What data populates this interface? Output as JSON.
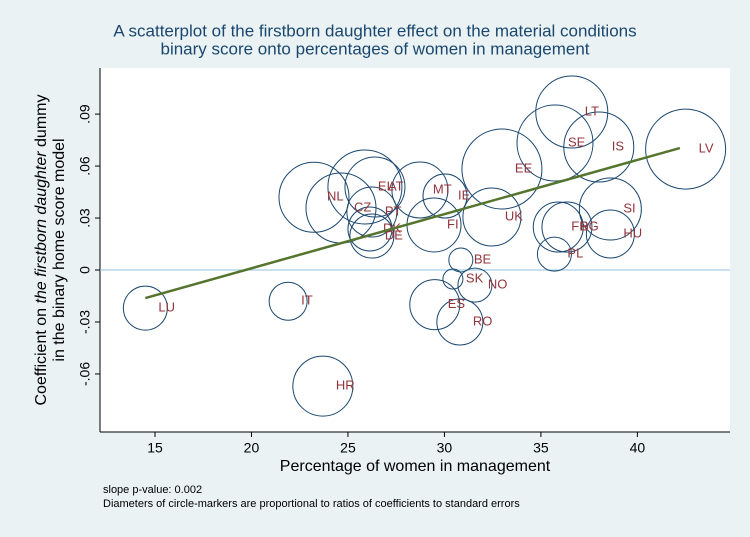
{
  "chart_data": {
    "type": "scatter",
    "title": [
      "A scatterplot of the firstborn daughter effect on the material conditions",
      "binary score onto percentages of women in management"
    ],
    "x_label": "Percentage of women in management",
    "y_label": {
      "line1": [
        "Coefficient on ",
        "the firstborn daughter",
        " dummy"
      ],
      "line2": "in the binary home score model"
    },
    "notes": [
      "slope p-value: 0.002",
      "Diameters of circle-markers are proportional to ratios of coefficients to standard errors"
    ],
    "labels": [
      "LU",
      "IT",
      "HR",
      "NL",
      "CZ",
      "EL",
      "AT",
      "PT",
      "DK",
      "DE",
      "MT",
      "IE",
      "FI",
      "UK",
      "EE",
      "SE",
      "LT",
      "IS",
      "LV",
      "SI",
      "FR",
      "BG",
      "HU",
      "PL",
      "BE",
      "SK",
      "NO",
      "ES",
      "RO"
    ],
    "x": [
      14.5,
      21.9,
      23.7,
      23.24,
      24.64,
      25.88,
      26.4,
      26.24,
      26.14,
      26.24,
      28.73,
      30.03,
      29.46,
      32.46,
      32.98,
      35.73,
      36.6,
      38.0,
      42.5,
      38.6,
      35.9,
      36.35,
      38.6,
      35.7,
      30.85,
      30.44,
      31.58,
      29.5,
      30.8
    ],
    "y": [
      -0.022,
      -0.018,
      -0.067,
      0.042,
      0.0358,
      0.0479,
      0.0479,
      0.0335,
      0.0237,
      0.0196,
      0.0462,
      0.0427,
      0.026,
      0.0306,
      0.0583,
      0.0733,
      0.0912,
      0.071,
      0.0698,
      0.0352,
      0.0248,
      0.0248,
      0.0208,
      0.0092,
      0.0058,
      -0.0052,
      -0.0087,
      -0.02,
      -0.03
    ],
    "sizes": [
      2.2,
      1.9,
      3.0,
      3.5,
      3.5,
      3.7,
      3.0,
      2.5,
      2.2,
      2.2,
      2.8,
      2.2,
      2.7,
      2.9,
      4.0,
      3.8,
      3.6,
      3.5,
      4.0,
      3.1,
      2.5,
      2.5,
      2.4,
      1.7,
      1.2,
      1.0,
      1.7,
      2.5,
      2.3
    ],
    "marker_color": "#1a476f",
    "label_color": "#90353b",
    "fit": {
      "x": [
        14.5,
        42.2
      ],
      "y": [
        -0.0162,
        0.0704
      ],
      "color": "#55752f"
    },
    "zero_line_color": "#8fc4de",
    "xlim": [
      12.15,
      44.8
    ],
    "xticks": [
      15,
      20,
      25,
      30,
      35,
      40
    ],
    "ylim": [
      -0.0935,
      0.1166
    ],
    "yticks": [
      {
        "value": -0.06,
        "label": "-.06"
      },
      {
        "value": -0.03,
        "label": "-.03"
      },
      {
        "value": 0,
        "label": "0"
      },
      {
        "value": 0.03,
        "label": ".03"
      },
      {
        "value": 0.06,
        "label": ".06"
      },
      {
        "value": 0.09,
        "label": ".09"
      }
    ]
  }
}
